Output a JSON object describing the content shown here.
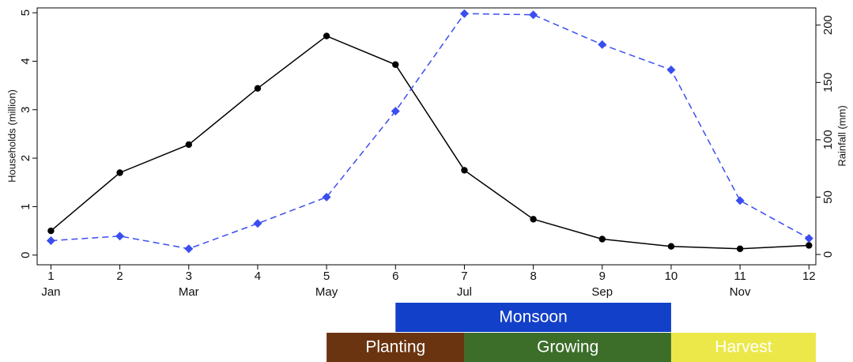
{
  "chart_data": {
    "type": "line",
    "y_label": "Households (million)",
    "y2_label": "Rainfall (mm)",
    "x": [
      1,
      2,
      3,
      4,
      5,
      6,
      7,
      8,
      9,
      10,
      11,
      12
    ],
    "xlim": [
      0.8,
      12.1
    ],
    "xticks": [
      1,
      2,
      3,
      4,
      5,
      6,
      7,
      8,
      9,
      10,
      11,
      12
    ],
    "xticks2": [
      {
        "value": 1,
        "label": "Jan"
      },
      {
        "value": 3,
        "label": "Mar"
      },
      {
        "value": 5,
        "label": "May"
      },
      {
        "value": 7,
        "label": "Jul"
      },
      {
        "value": 9,
        "label": "Sep"
      },
      {
        "value": 11,
        "label": "Nov"
      }
    ],
    "ylim": [
      -0.2,
      5.1
    ],
    "yticks": [
      0,
      1,
      2,
      3,
      4,
      5
    ],
    "y2lim": [
      -9,
      215
    ],
    "y2ticks": [
      0,
      50,
      100,
      150,
      200
    ],
    "series": [
      {
        "color": "#000000",
        "line_style": "solid",
        "marker": "circle",
        "axis": "y",
        "values": [
          0.5,
          1.7,
          2.28,
          3.44,
          4.52,
          3.93,
          1.75,
          0.74,
          0.33,
          0.18,
          0.13,
          0.2
        ]
      },
      {
        "color": "#3a4ef0",
        "line_style": "dashed",
        "marker": "diamond",
        "axis": "y2",
        "values": [
          12,
          16,
          5,
          27,
          50,
          125,
          210,
          209,
          183,
          161,
          47,
          14
        ]
      }
    ],
    "seasons": [
      {
        "label": "Monsoon",
        "start": 6,
        "end": 10,
        "row": 0,
        "color": "#1340c8",
        "text_color": "#ffffff"
      },
      {
        "label": "Planting",
        "start": 5,
        "end": 7,
        "row": 1,
        "color": "#6b3410",
        "text_color": "#ffffff"
      },
      {
        "label": "Growing",
        "start": 7,
        "end": 10,
        "row": 1,
        "color": "#3c6e2a",
        "text_color": "#ffffff"
      },
      {
        "label": "Harvest",
        "start": 10,
        "end": 12.1,
        "row": 1,
        "color": "#ece84a",
        "text_color": "#ffffff"
      }
    ]
  }
}
